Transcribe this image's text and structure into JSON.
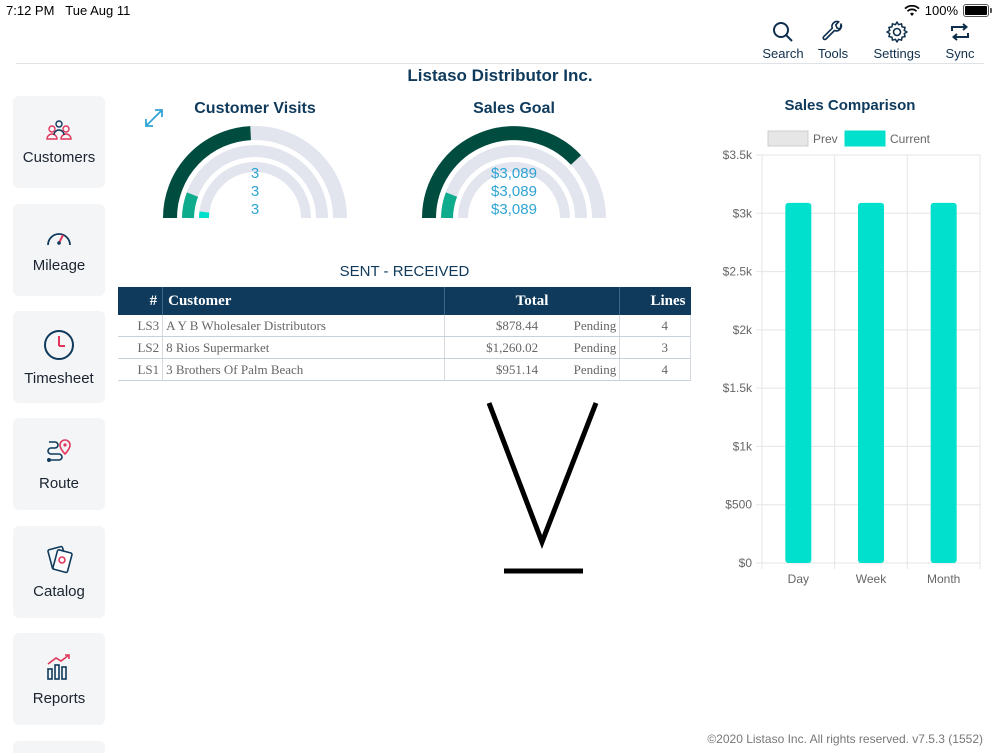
{
  "status": {
    "time": "7:12 PM",
    "date": "Tue Aug 11",
    "battery": "100%"
  },
  "toolbar": {
    "search": "Search",
    "tools": "Tools",
    "settings": "Settings",
    "sync": "Sync"
  },
  "company": "Listaso Distributor Inc.",
  "sidebar": {
    "items": [
      {
        "label": "Customers",
        "icon": "customers-icon"
      },
      {
        "label": "Mileage",
        "icon": "speedometer-icon"
      },
      {
        "label": "Timesheet",
        "icon": "clock-icon"
      },
      {
        "label": "Route",
        "icon": "route-pin-icon"
      },
      {
        "label": "Catalog",
        "icon": "catalog-icon"
      },
      {
        "label": "Reports",
        "icon": "chart-icon"
      }
    ]
  },
  "gauges": {
    "visits": {
      "title": "Customer Visits",
      "values": [
        "3",
        "3",
        "3"
      ]
    },
    "sales": {
      "title": "Sales Goal",
      "values": [
        "$3,089",
        "$3,089",
        "$3,089"
      ]
    }
  },
  "sent_received": {
    "title": "SENT - RECEIVED",
    "headers": {
      "num": "#",
      "customer": "Customer",
      "total": "Total",
      "lines": "Lines"
    },
    "rows": [
      {
        "num": "LS3",
        "customer": "A Y B Wholesaler Distributors",
        "total": "$878.44",
        "status": "Pending",
        "lines": "4"
      },
      {
        "num": "LS2",
        "customer": "8 Rios Supermarket",
        "total": "$1,260.02",
        "status": "Pending",
        "lines": "3"
      },
      {
        "num": "LS1",
        "customer": "3 Brothers Of Palm Beach",
        "total": "$951.14",
        "status": "Pending",
        "lines": "4"
      }
    ]
  },
  "chart_data": {
    "type": "bar",
    "title": "Sales Comparison",
    "categories": [
      "Day",
      "Week",
      "Month"
    ],
    "series": [
      {
        "name": "Prev",
        "values": [
          0,
          0,
          0
        ],
        "color": "#e6e6e6"
      },
      {
        "name": "Current",
        "values": [
          3089,
          3089,
          3089
        ],
        "color": "#00e0cc"
      }
    ],
    "ylim": [
      0,
      3500
    ],
    "ticks": [
      "$0",
      "$500",
      "$1k",
      "$1.5k",
      "$2k",
      "$2.5k",
      "$3k",
      "$3.5k"
    ],
    "grid": true,
    "legend": "top"
  },
  "colors": {
    "primary": "#0f3a5c",
    "accent": "#00e0cc",
    "gauge_dark": "#004d40",
    "gauge_mid": "#0eab8c",
    "gauge_track": "#e2e4ee"
  },
  "footer": "©2020 Listaso Inc. All rights reserved.  v7.5.3 (1552)"
}
